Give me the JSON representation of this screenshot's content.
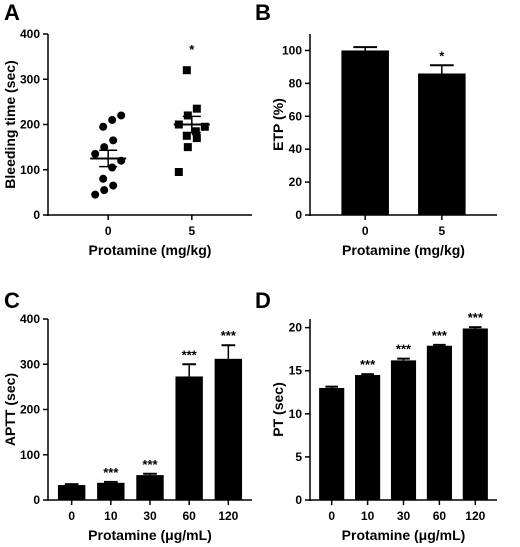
{
  "chart_data": [
    {
      "panel": "A",
      "type": "scatter",
      "xlabel": "Protamine (mg/kg)",
      "ylabel": "Bleeding time (sec)",
      "categories": [
        "0",
        "5"
      ],
      "ylim": [
        0,
        400
      ],
      "yticks": [
        0,
        100,
        200,
        300,
        400
      ],
      "points": [
        {
          "group": "0",
          "marker": "circle",
          "values": [
            45,
            55,
            65,
            80,
            105,
            120,
            135,
            150,
            165,
            195,
            210,
            220
          ]
        },
        {
          "group": "5",
          "marker": "square",
          "values": [
            95,
            150,
            170,
            175,
            185,
            195,
            200,
            220,
            235,
            320
          ]
        }
      ],
      "means": [
        125,
        200
      ],
      "sem": [
        18,
        18
      ],
      "significance": [
        "",
        "*"
      ]
    },
    {
      "panel": "B",
      "type": "bar",
      "xlabel": "Protamine (mg/kg)",
      "ylabel": "ETP (%)",
      "categories": [
        "0",
        "5"
      ],
      "values": [
        100,
        86
      ],
      "errors": [
        2,
        5
      ],
      "ylim": [
        0,
        110
      ],
      "yticks": [
        0,
        20,
        40,
        60,
        80,
        100
      ],
      "significance": [
        "",
        "*"
      ]
    },
    {
      "panel": "C",
      "type": "bar",
      "xlabel": "Protamine (μg/mL)",
      "ylabel": "APTT (sec)",
      "categories": [
        "0",
        "10",
        "30",
        "60",
        "120"
      ],
      "values": [
        33,
        38,
        55,
        273,
        312
      ],
      "errors": [
        2,
        2,
        3,
        27,
        30
      ],
      "ylim": [
        0,
        400
      ],
      "yticks": [
        0,
        100,
        200,
        300,
        400
      ],
      "significance": [
        "",
        "***",
        "***",
        "***",
        "***"
      ]
    },
    {
      "panel": "D",
      "type": "bar",
      "xlabel": "Protamine (μg/mL)",
      "ylabel": "PT (sec)",
      "categories": [
        "0",
        "10",
        "30",
        "60",
        "120"
      ],
      "values": [
        13.0,
        14.5,
        16.2,
        17.9,
        19.9
      ],
      "errors": [
        0.15,
        0.1,
        0.2,
        0.1,
        0.15
      ],
      "ylim": [
        0,
        21
      ],
      "yticks": [
        0,
        5,
        10,
        15,
        20
      ],
      "significance": [
        "",
        "***",
        "***",
        "***",
        "***"
      ]
    }
  ]
}
